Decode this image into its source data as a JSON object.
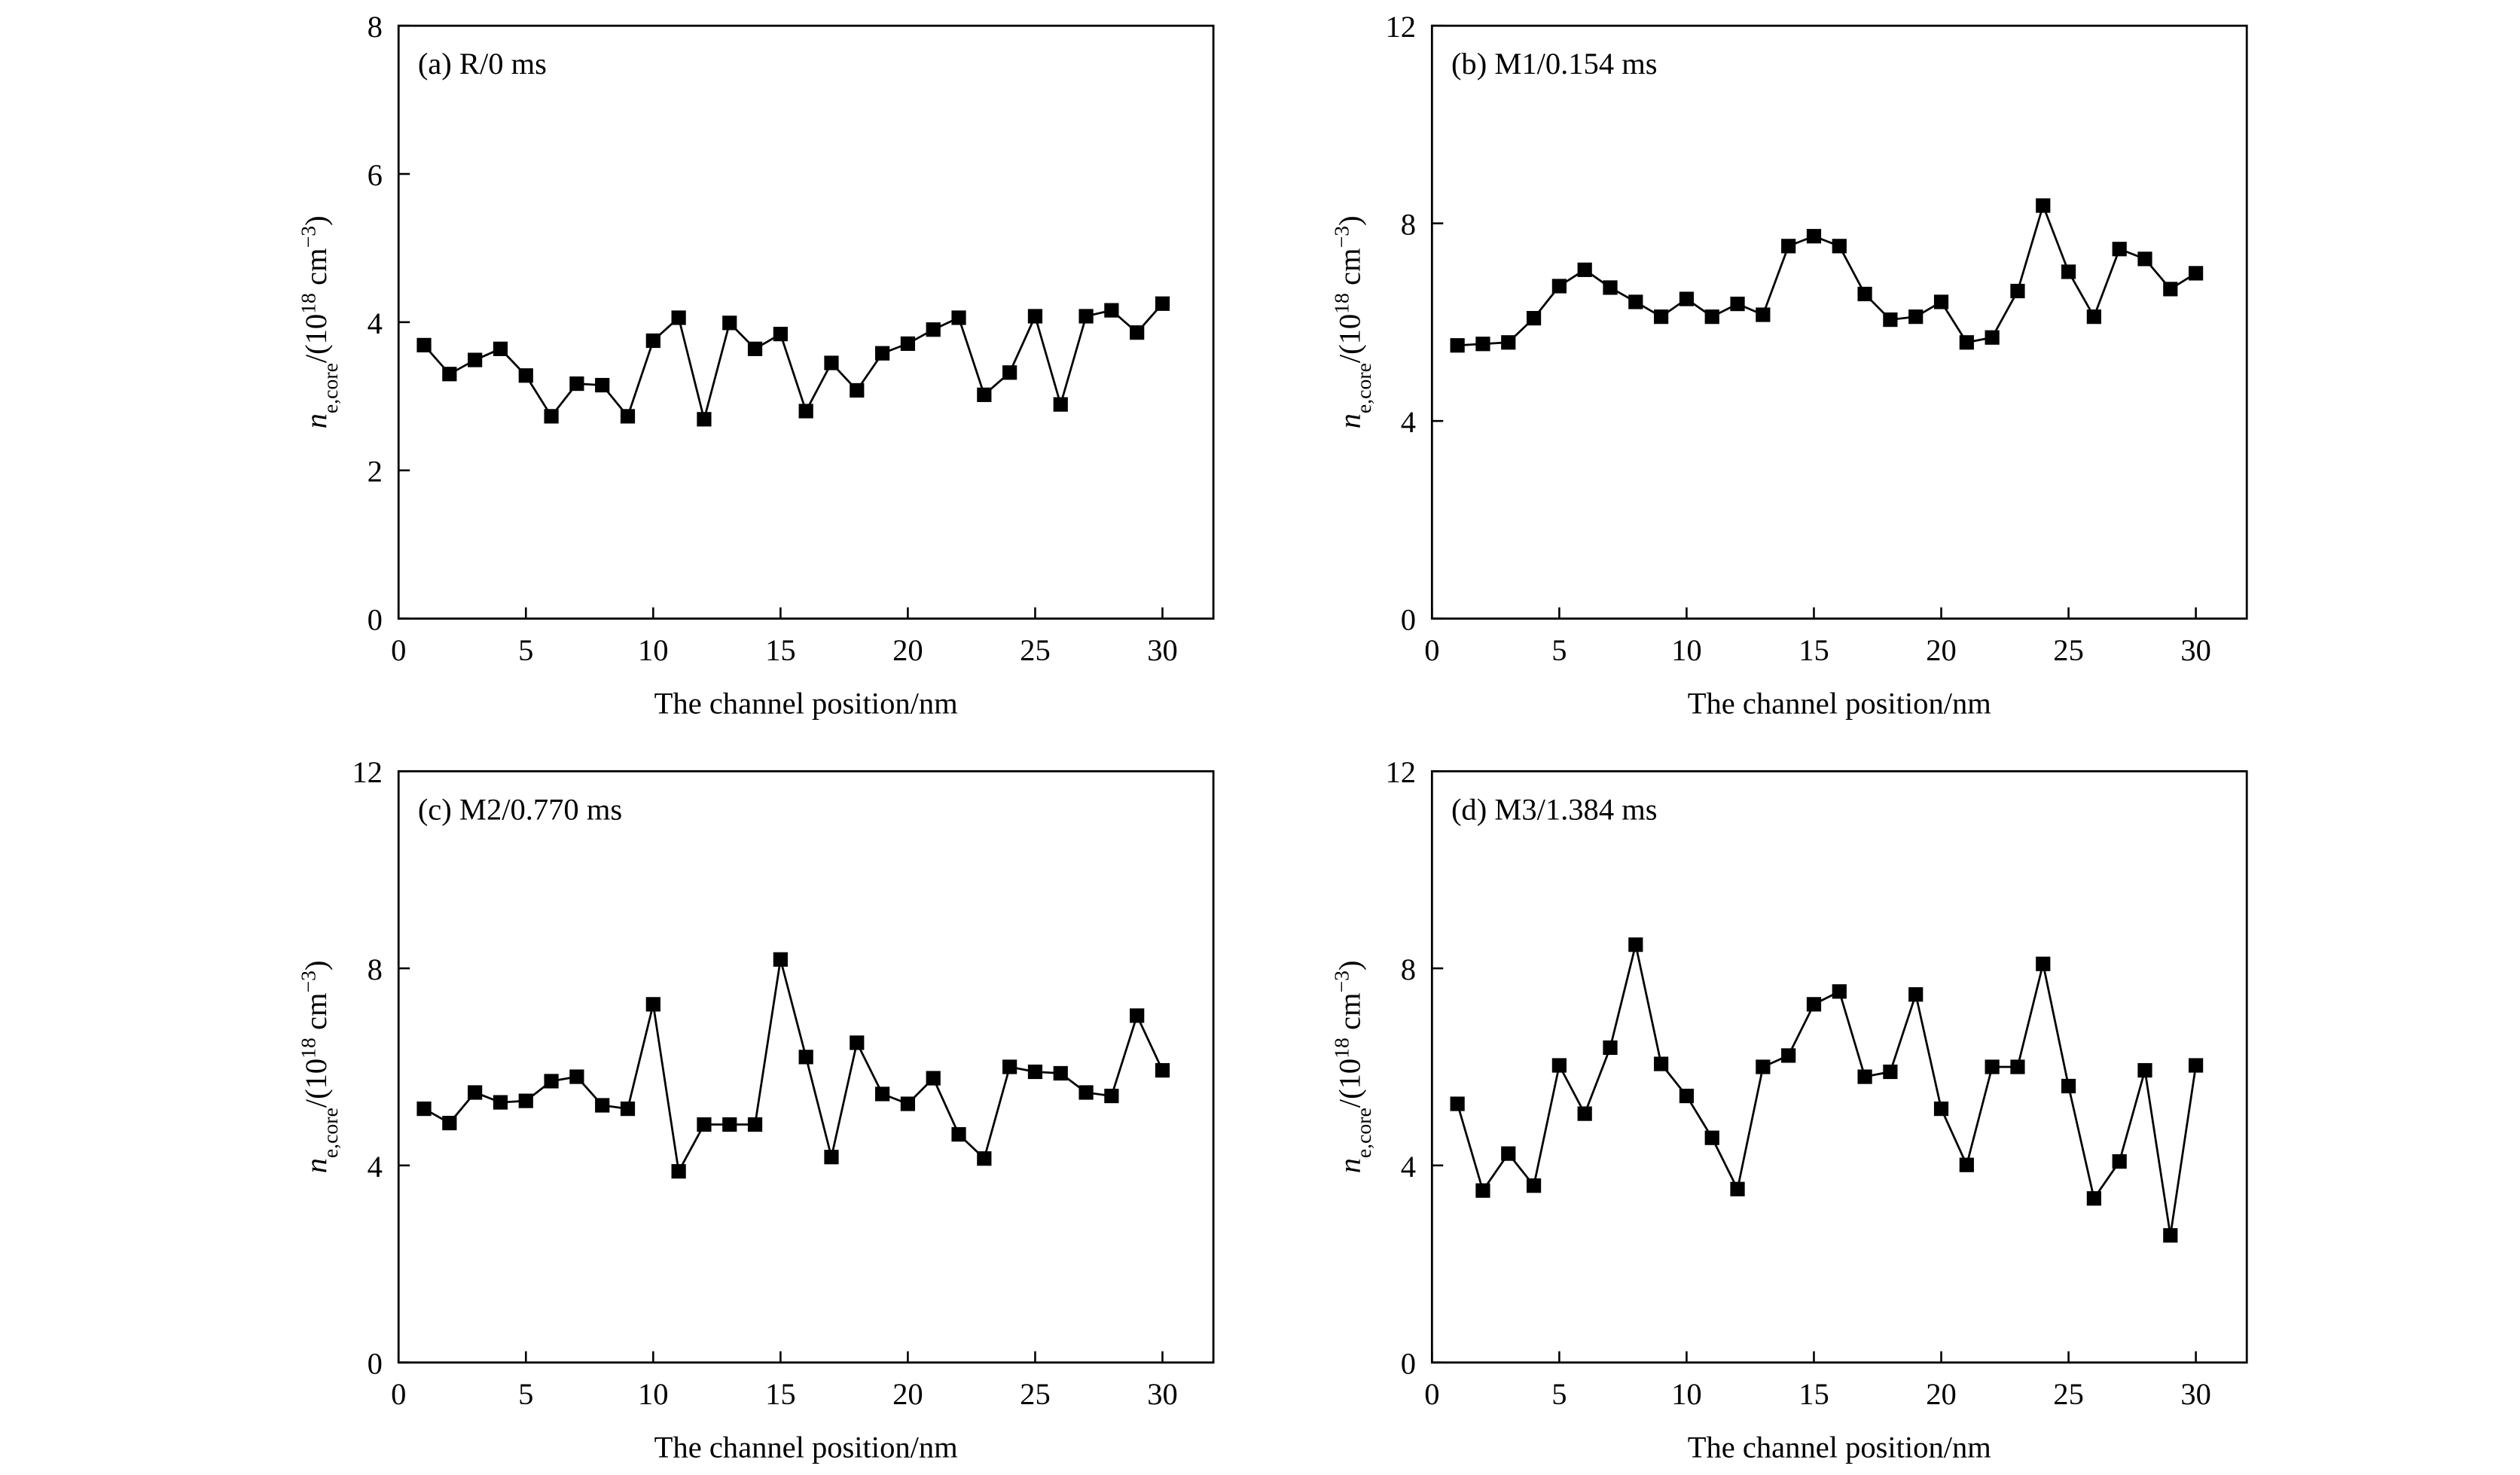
{
  "chart_data": [
    {
      "type": "line",
      "title": "(a) R/0 ms",
      "xlabel": "The channel position/nm",
      "ylabel_parts": [
        "n",
        "e,core",
        "/(10",
        "18",
        " cm",
        "−3",
        ")"
      ],
      "x": [
        1,
        2,
        3,
        4,
        5,
        6,
        7,
        8,
        9,
        10,
        11,
        12,
        13,
        14,
        15,
        16,
        17,
        18,
        19,
        20,
        21,
        22,
        23,
        24,
        25,
        26,
        27,
        28,
        29,
        30
      ],
      "color": "#000000",
      "values": [
        3.69,
        3.3,
        3.49,
        3.64,
        3.28,
        2.73,
        3.17,
        3.15,
        2.73,
        3.75,
        4.06,
        2.69,
        3.99,
        3.64,
        3.84,
        2.8,
        3.45,
        3.08,
        3.58,
        3.71,
        3.9,
        4.06,
        3.02,
        3.32,
        4.08,
        2.89,
        4.08,
        4.16,
        3.86,
        4.25
      ],
      "xlim": [
        0,
        32
      ],
      "ylim": [
        0,
        8
      ],
      "xticks": [
        0,
        5,
        10,
        15,
        20,
        25,
        30
      ],
      "yticks": [
        0,
        2,
        4,
        6,
        8
      ]
    },
    {
      "type": "line",
      "title": "(b) M1/0.154 ms",
      "xlabel": "The channel position/nm",
      "ylabel_parts": [
        "n",
        "e,core",
        "/(10",
        "18",
        " cm",
        "−3",
        ")"
      ],
      "x": [
        1,
        2,
        3,
        4,
        5,
        6,
        7,
        8,
        9,
        10,
        11,
        12,
        13,
        14,
        15,
        16,
        17,
        18,
        19,
        20,
        21,
        22,
        23,
        24,
        25,
        26,
        27,
        28,
        29,
        30
      ],
      "color": "#000000",
      "values": [
        5.53,
        5.56,
        5.59,
        6.08,
        6.73,
        7.06,
        6.7,
        6.41,
        6.11,
        6.47,
        6.11,
        6.37,
        6.15,
        7.54,
        7.74,
        7.54,
        6.57,
        6.05,
        6.11,
        6.41,
        5.59,
        5.69,
        6.63,
        8.36,
        7.02,
        6.11,
        7.48,
        7.28,
        6.67,
        6.99
      ],
      "xlim": [
        0,
        32
      ],
      "ylim": [
        0,
        12
      ],
      "xticks": [
        0,
        5,
        10,
        15,
        20,
        25,
        30
      ],
      "yticks": [
        0,
        4,
        8,
        12
      ]
    },
    {
      "type": "line",
      "title": "(c) M2/0.770 ms",
      "xlabel": "The channel position/nm",
      "ylabel_parts": [
        "n",
        "e,core",
        "/(10",
        "18",
        " cm",
        "−3",
        ")"
      ],
      "x": [
        1,
        2,
        3,
        4,
        5,
        6,
        7,
        8,
        9,
        10,
        11,
        12,
        13,
        14,
        15,
        16,
        17,
        18,
        19,
        20,
        21,
        22,
        23,
        24,
        25,
        26,
        27,
        28,
        29,
        30
      ],
      "color": "#000000",
      "values": [
        5.15,
        4.86,
        5.48,
        5.28,
        5.31,
        5.71,
        5.8,
        5.22,
        5.15,
        7.27,
        3.88,
        4.83,
        4.83,
        4.83,
        8.18,
        6.2,
        4.17,
        6.49,
        5.45,
        5.25,
        5.77,
        4.63,
        4.14,
        6.0,
        5.9,
        5.87,
        5.48,
        5.41,
        7.04,
        5.93
      ],
      "xlim": [
        0,
        32
      ],
      "ylim": [
        0,
        12
      ],
      "xticks": [
        0,
        5,
        10,
        15,
        20,
        25,
        30
      ],
      "yticks": [
        0,
        4,
        8,
        12
      ]
    },
    {
      "type": "line",
      "title": "(d) M3/1.384 ms",
      "xlabel": "The channel position/nm",
      "ylabel_parts": [
        "n",
        "e,core",
        "/(10",
        "18",
        " cm",
        "−3",
        ")"
      ],
      "x": [
        1,
        2,
        3,
        4,
        5,
        6,
        7,
        8,
        9,
        10,
        11,
        12,
        13,
        14,
        15,
        16,
        17,
        18,
        19,
        20,
        21,
        22,
        23,
        24,
        25,
        26,
        27,
        28,
        29,
        30
      ],
      "color": "#000000",
      "values": [
        5.25,
        3.49,
        4.24,
        3.59,
        6.03,
        5.05,
        6.39,
        8.48,
        6.06,
        5.41,
        4.56,
        3.52,
        6.0,
        6.23,
        7.27,
        7.53,
        5.8,
        5.9,
        7.47,
        5.15,
        4.01,
        6.0,
        6.0,
        8.09,
        5.61,
        3.33,
        4.08,
        5.93,
        2.58,
        6.03
      ],
      "xlim": [
        0,
        32
      ],
      "ylim": [
        0,
        12
      ],
      "xticks": [
        0,
        5,
        10,
        15,
        20,
        25,
        30
      ],
      "yticks": [
        0,
        4,
        8,
        12
      ]
    }
  ]
}
